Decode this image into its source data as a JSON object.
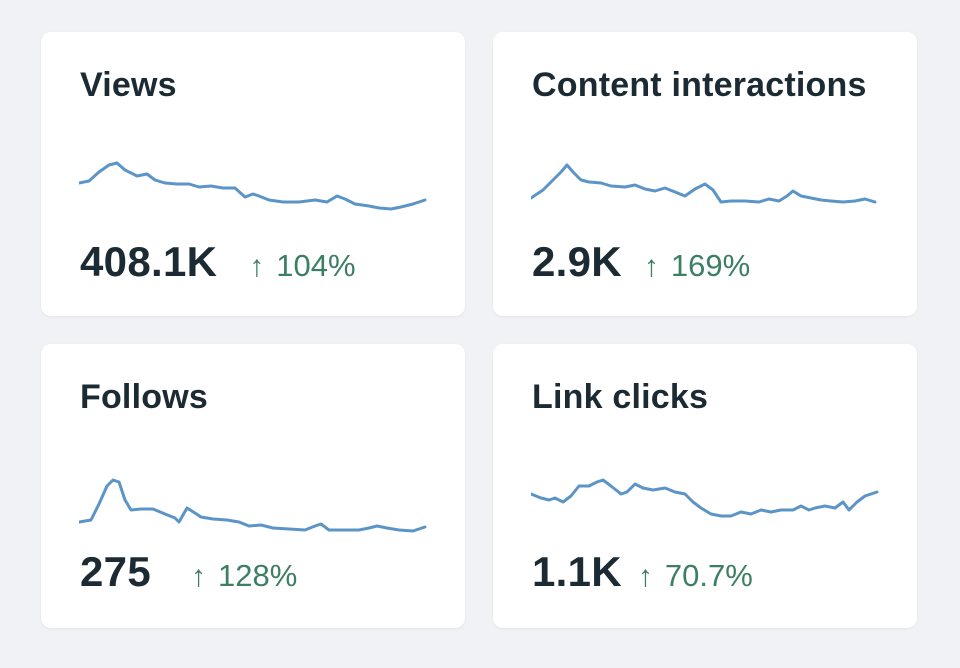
{
  "colors": {
    "background": "#f0f2f5",
    "card": "#ffffff",
    "title_text": "#1c2b33",
    "sparkline": "#5b95c7",
    "positive_change": "#3d7f63"
  },
  "icons": {
    "trend": "arrow-up-icon",
    "trend_glyph": "↑"
  },
  "cards": [
    {
      "title": "Views",
      "value": "408.1K",
      "change": "104%",
      "trend": "up"
    },
    {
      "title": "Content interactions",
      "value": "2.9K",
      "change": "169%",
      "trend": "up"
    },
    {
      "title": "Follows",
      "value": "275",
      "change": "128%",
      "trend": "up"
    },
    {
      "title": "Link clicks",
      "value": "1.1K",
      "change": "70.7%",
      "trend": "up"
    }
  ]
}
